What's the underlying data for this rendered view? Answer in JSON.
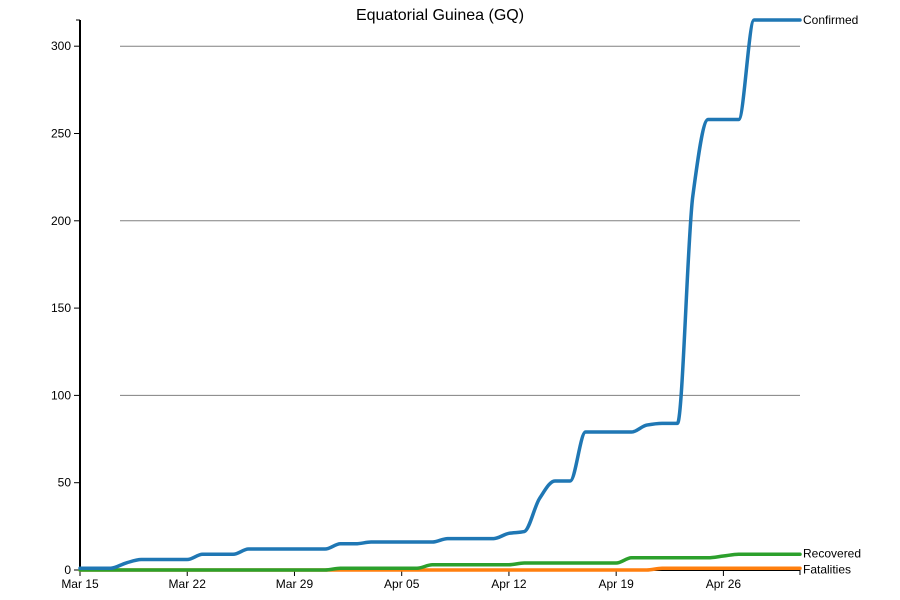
{
  "chart_data": {
    "type": "line",
    "title": "Equatorial Guinea (GQ)",
    "xlabel": "",
    "ylabel": "",
    "x_start": "2020-03-15",
    "x_end": "2020-05-01",
    "x_ticks": [
      {
        "date": "2020-03-15",
        "label": "Mar 15"
      },
      {
        "date": "2020-03-22",
        "label": "Mar 22"
      },
      {
        "date": "2020-03-29",
        "label": "Mar 29"
      },
      {
        "date": "2020-04-05",
        "label": "Apr 05"
      },
      {
        "date": "2020-04-12",
        "label": "Apr 12"
      },
      {
        "date": "2020-04-19",
        "label": "Apr 19"
      },
      {
        "date": "2020-04-26",
        "label": "Apr 26"
      }
    ],
    "ylim": [
      0,
      315
    ],
    "y_ticks": [
      0,
      50,
      100,
      150,
      200,
      250,
      300
    ],
    "grid": "horizontal",
    "legend": "labels at line ends",
    "series": [
      {
        "name": "Confirmed",
        "color": "#1f77b4",
        "points": [
          [
            "2020-03-15",
            1
          ],
          [
            "2020-03-16",
            1
          ],
          [
            "2020-03-17",
            1
          ],
          [
            "2020-03-18",
            4
          ],
          [
            "2020-03-19",
            6
          ],
          [
            "2020-03-20",
            6
          ],
          [
            "2020-03-21",
            6
          ],
          [
            "2020-03-22",
            6
          ],
          [
            "2020-03-23",
            9
          ],
          [
            "2020-03-24",
            9
          ],
          [
            "2020-03-25",
            9
          ],
          [
            "2020-03-26",
            12
          ],
          [
            "2020-03-27",
            12
          ],
          [
            "2020-03-28",
            12
          ],
          [
            "2020-03-29",
            12
          ],
          [
            "2020-03-30",
            12
          ],
          [
            "2020-03-31",
            12
          ],
          [
            "2020-04-01",
            15
          ],
          [
            "2020-04-02",
            15
          ],
          [
            "2020-04-03",
            16
          ],
          [
            "2020-04-04",
            16
          ],
          [
            "2020-04-05",
            16
          ],
          [
            "2020-04-06",
            16
          ],
          [
            "2020-04-07",
            16
          ],
          [
            "2020-04-08",
            18
          ],
          [
            "2020-04-09",
            18
          ],
          [
            "2020-04-10",
            18
          ],
          [
            "2020-04-11",
            18
          ],
          [
            "2020-04-12",
            21
          ],
          [
            "2020-04-13",
            22
          ],
          [
            "2020-04-14",
            41
          ],
          [
            "2020-04-15",
            51
          ],
          [
            "2020-04-16",
            51
          ],
          [
            "2020-04-17",
            79
          ],
          [
            "2020-04-18",
            79
          ],
          [
            "2020-04-19",
            79
          ],
          [
            "2020-04-20",
            79
          ],
          [
            "2020-04-21",
            83
          ],
          [
            "2020-04-22",
            84
          ],
          [
            "2020-04-23",
            84
          ],
          [
            "2020-04-24",
            214
          ],
          [
            "2020-04-25",
            258
          ],
          [
            "2020-04-26",
            258
          ],
          [
            "2020-04-27",
            258
          ],
          [
            "2020-04-28",
            315
          ],
          [
            "2020-04-29",
            315
          ],
          [
            "2020-04-30",
            315
          ],
          [
            "2020-05-01",
            315
          ]
        ]
      },
      {
        "name": "Recovered",
        "color": "#2ca02c",
        "points": [
          [
            "2020-03-15",
            0
          ],
          [
            "2020-03-30",
            0
          ],
          [
            "2020-03-31",
            0
          ],
          [
            "2020-04-01",
            1
          ],
          [
            "2020-04-02",
            1
          ],
          [
            "2020-04-03",
            1
          ],
          [
            "2020-04-04",
            1
          ],
          [
            "2020-04-05",
            1
          ],
          [
            "2020-04-06",
            1
          ],
          [
            "2020-04-07",
            3
          ],
          [
            "2020-04-08",
            3
          ],
          [
            "2020-04-09",
            3
          ],
          [
            "2020-04-10",
            3
          ],
          [
            "2020-04-11",
            3
          ],
          [
            "2020-04-12",
            3
          ],
          [
            "2020-04-13",
            4
          ],
          [
            "2020-04-14",
            4
          ],
          [
            "2020-04-15",
            4
          ],
          [
            "2020-04-16",
            4
          ],
          [
            "2020-04-17",
            4
          ],
          [
            "2020-04-18",
            4
          ],
          [
            "2020-04-19",
            4
          ],
          [
            "2020-04-20",
            7
          ],
          [
            "2020-04-21",
            7
          ],
          [
            "2020-04-22",
            7
          ],
          [
            "2020-04-23",
            7
          ],
          [
            "2020-04-24",
            7
          ],
          [
            "2020-04-25",
            7
          ],
          [
            "2020-04-26",
            8
          ],
          [
            "2020-04-27",
            9
          ],
          [
            "2020-04-28",
            9
          ],
          [
            "2020-04-29",
            9
          ],
          [
            "2020-04-30",
            9
          ],
          [
            "2020-05-01",
            9
          ]
        ]
      },
      {
        "name": "Fatalities",
        "color": "#ff7f0e",
        "points": [
          [
            "2020-03-15",
            0
          ],
          [
            "2020-04-21",
            0
          ],
          [
            "2020-04-22",
            1
          ],
          [
            "2020-04-23",
            1
          ],
          [
            "2020-04-24",
            1
          ],
          [
            "2020-04-25",
            1
          ],
          [
            "2020-04-26",
            1
          ],
          [
            "2020-04-27",
            1
          ],
          [
            "2020-04-28",
            1
          ],
          [
            "2020-04-29",
            1
          ],
          [
            "2020-04-30",
            1
          ],
          [
            "2020-05-01",
            1
          ]
        ]
      }
    ]
  }
}
